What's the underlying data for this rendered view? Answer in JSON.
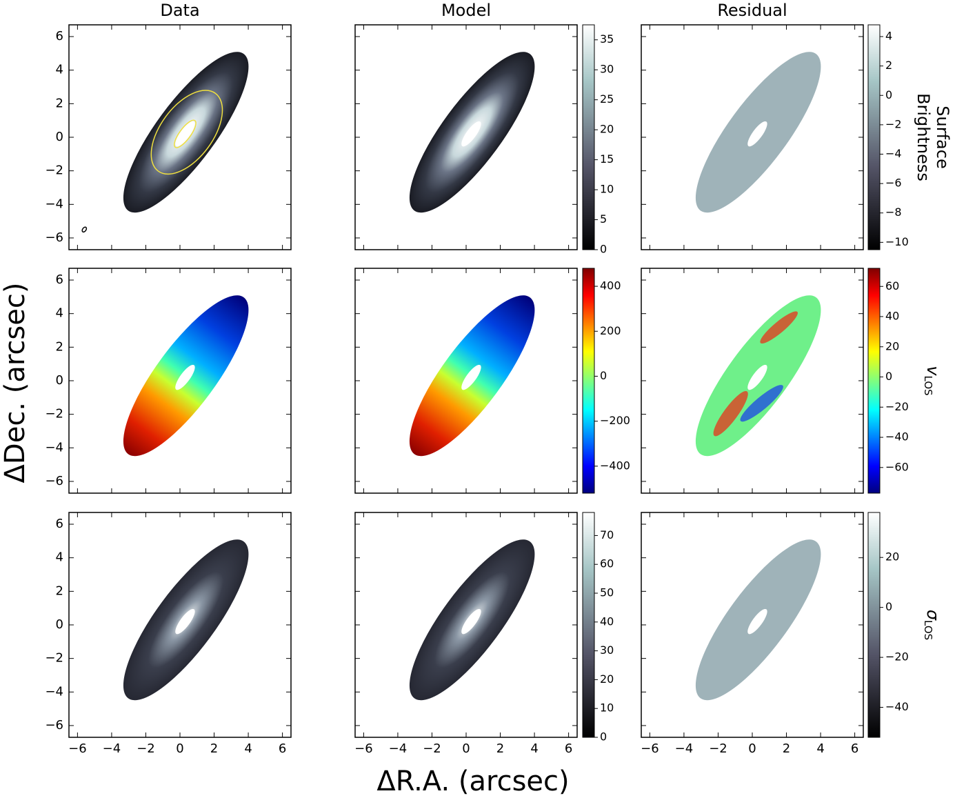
{
  "chart_data": {
    "type": "image-grid",
    "columns": [
      "Data",
      "Model",
      "Residual"
    ],
    "xlabel": "ΔR.A. (arcsec)",
    "ylabel": "ΔDec. (arcsec)",
    "xlim": [
      -6.5,
      6.5
    ],
    "ylim": [
      -6.7,
      6.7
    ],
    "xticks": [
      {
        "value": -6,
        "label": "−6"
      },
      {
        "value": -4,
        "label": "−4"
      },
      {
        "value": -2,
        "label": "−2"
      },
      0,
      2,
      4,
      6
    ],
    "yticks": [
      {
        "value": -6,
        "label": "−6"
      },
      {
        "value": -4,
        "label": "−4"
      },
      {
        "value": -2,
        "label": "−2"
      },
      0,
      2,
      4,
      6
    ],
    "rows": [
      {
        "label_lines": [
          "Surface",
          "Brightness"
        ],
        "cmap": "bone",
        "model_colorbar": {
          "lim": [
            0,
            37.5
          ],
          "ticks": [
            0,
            5,
            10,
            15,
            20,
            25,
            30,
            35
          ]
        },
        "residual_colorbar": {
          "lim": [
            -10.5,
            4.8
          ],
          "ticks": [
            {
              "value": -10,
              "label": "−10"
            },
            {
              "value": -8,
              "label": "−8"
            },
            {
              "value": -6,
              "label": "−6"
            },
            {
              "value": -4,
              "label": "−4"
            },
            {
              "value": -2,
              "label": "−2"
            },
            0,
            2,
            4
          ]
        }
      },
      {
        "symbol": "v",
        "subscript": "LOS",
        "cmap": "jet",
        "model_colorbar": {
          "lim": [
            -520,
            480
          ],
          "ticks": [
            {
              "value": -400,
              "label": "−400"
            },
            {
              "value": -200,
              "label": "−200"
            },
            0,
            200,
            400
          ]
        },
        "residual_colorbar": {
          "lim": [
            -77,
            72
          ],
          "ticks": [
            {
              "value": -60,
              "label": "−60"
            },
            {
              "value": -40,
              "label": "−40"
            },
            {
              "value": -20,
              "label": "−20"
            },
            0,
            20,
            40,
            60
          ]
        }
      },
      {
        "symbol": "σ",
        "subscript": "LOS",
        "cmap": "bone",
        "model_colorbar": {
          "lim": [
            0,
            78
          ],
          "ticks": [
            0,
            10,
            20,
            30,
            40,
            50,
            60,
            70
          ]
        },
        "residual_colorbar": {
          "lim": [
            -52,
            38
          ],
          "ticks": [
            {
              "value": -40,
              "label": "−40"
            },
            {
              "value": -20,
              "label": "−20"
            },
            0,
            20
          ]
        }
      }
    ]
  }
}
